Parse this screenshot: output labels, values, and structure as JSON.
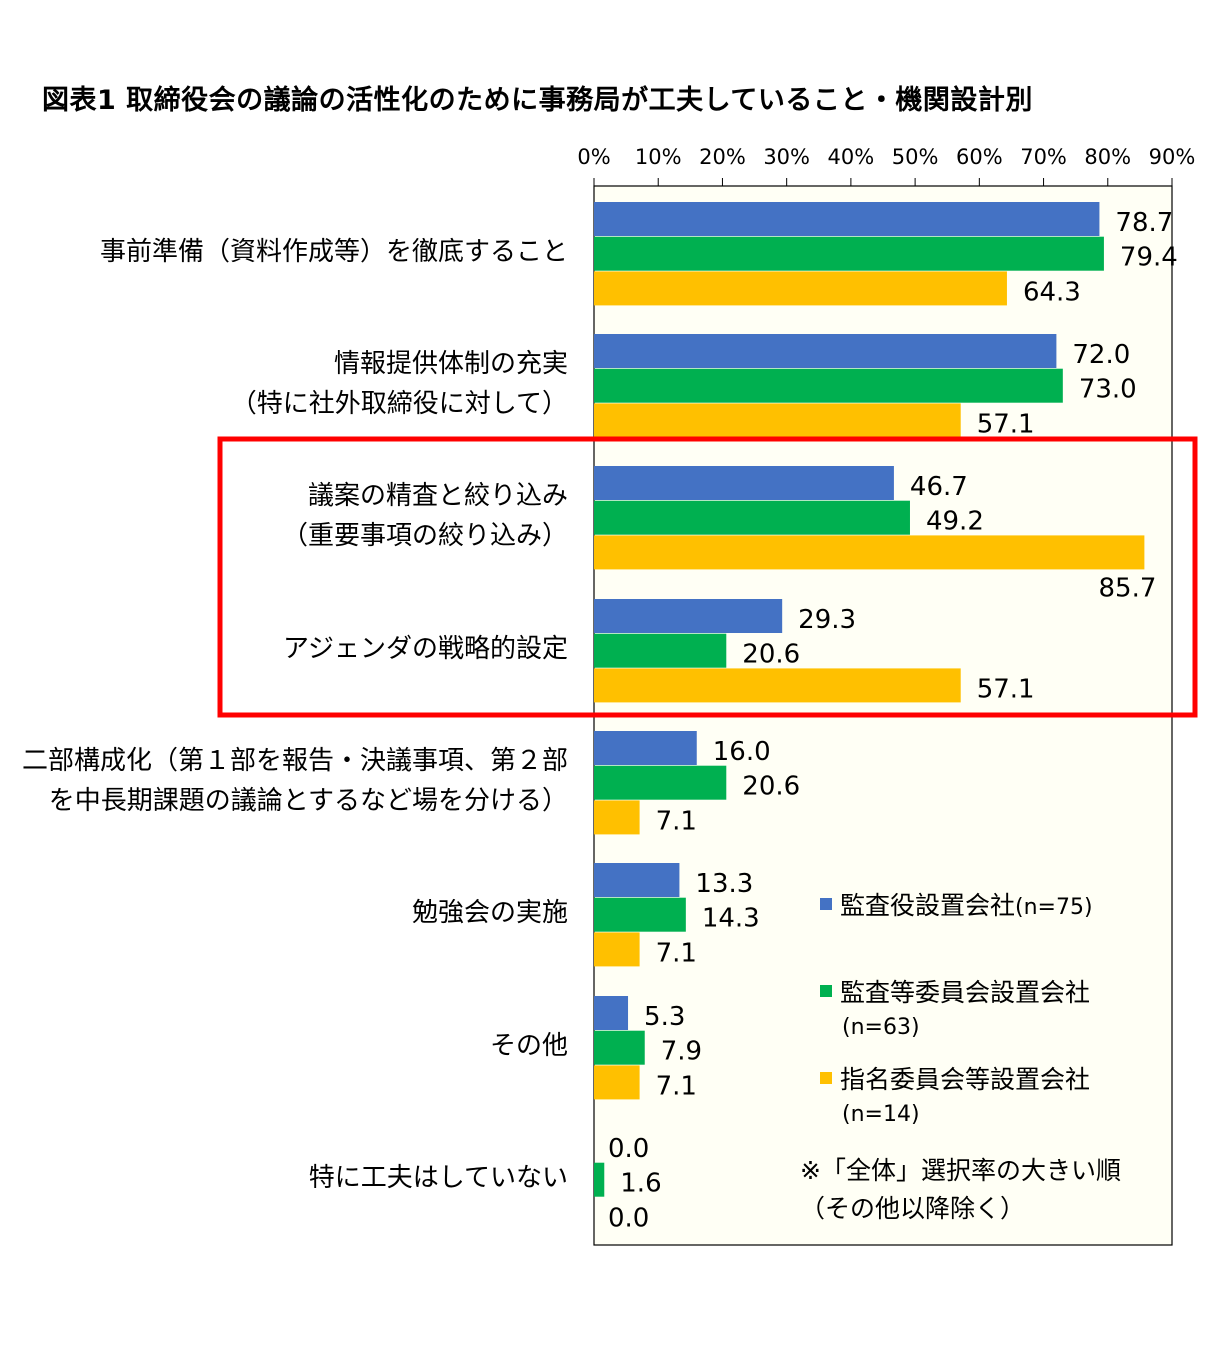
{
  "chart_data": {
    "type": "bar",
    "orientation": "horizontal",
    "title": "図表1 取締役会の議論の活性化のために事務局が工夫していること・機関設計別",
    "xlim": [
      0,
      90
    ],
    "x_ticks": [
      "0%",
      "10%",
      "20%",
      "30%",
      "40%",
      "50%",
      "60%",
      "70%",
      "80%",
      "90%"
    ],
    "categories": [
      [
        "事前準備（資料作成等）を徹底すること"
      ],
      [
        "情報提供体制の充実",
        "（特に社外取締役に対して）"
      ],
      [
        "議案の精査と絞り込み",
        "（重要事項の絞り込み）"
      ],
      [
        "アジェンダの戦略的設定"
      ],
      [
        "二部構成化（第１部を報告・決議事項、第２部",
        "を中長期課題の議論とするなど場を分ける）"
      ],
      [
        "勉強会の実施"
      ],
      [
        "その他"
      ],
      [
        "特に工夫はしていない"
      ]
    ],
    "series": [
      {
        "name": "監査役設置会社",
        "n": "(n=75)",
        "color": "#4472C4",
        "values": [
          78.7,
          72.0,
          46.7,
          29.3,
          16.0,
          13.3,
          5.3,
          0.0
        ],
        "labels": [
          "78.7",
          "72.0",
          "46.7",
          "29.3",
          "16.0",
          "13.3",
          "5.3",
          "0.0"
        ]
      },
      {
        "name": "監査等委員会設置会社",
        "n": "(n=63)",
        "color": "#00B050",
        "values": [
          79.4,
          73.0,
          49.2,
          20.6,
          20.6,
          14.3,
          7.9,
          1.6
        ],
        "labels": [
          "79.4",
          "73.0",
          "49.2",
          "20.6",
          "20.6",
          "14.3",
          "7.9",
          "1.6"
        ]
      },
      {
        "name": "指名委員会等設置会社",
        "n": "(n=14)",
        "color": "#FFC000",
        "values": [
          64.3,
          57.1,
          85.7,
          57.1,
          7.1,
          7.1,
          7.1,
          0.0
        ],
        "labels": [
          "64.3",
          "57.1",
          "85.7",
          "57.1",
          "7.1",
          "7.1",
          "7.1",
          "0.0"
        ]
      }
    ],
    "highlight_categories": [
      2,
      3
    ],
    "highlight_color": "#FF0000",
    "plot_background": "#FFFFF5",
    "legend_position": "bottom-right inside plot",
    "note": [
      "※「全体」選択率の大きい順",
      "（その他以降除く）"
    ]
  }
}
